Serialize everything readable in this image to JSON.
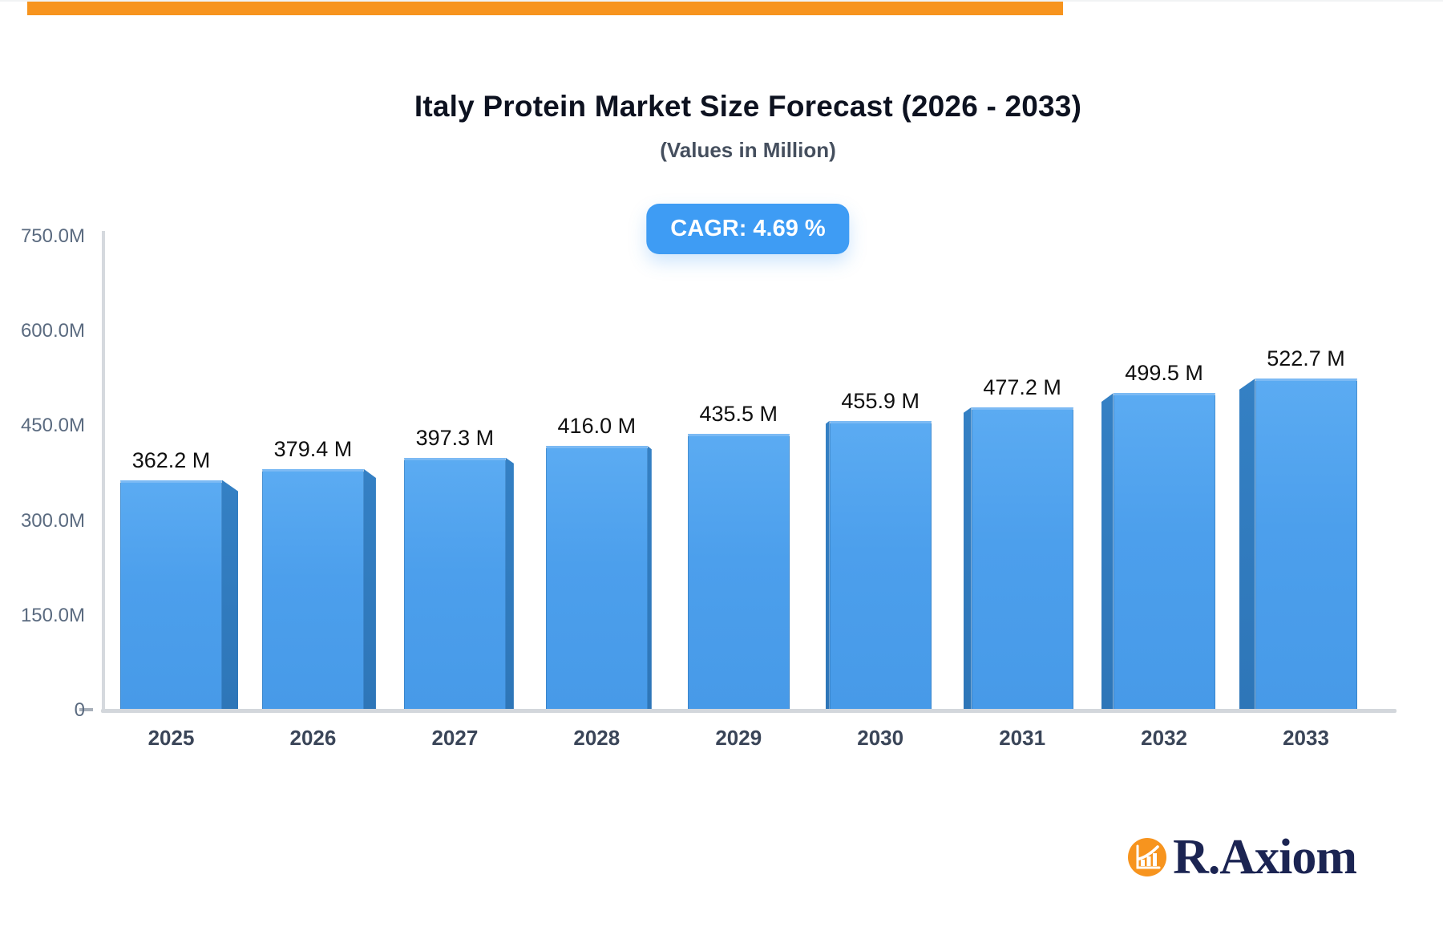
{
  "chart_data": {
    "type": "bar",
    "title": "Italy Protein Market Size Forecast (2026 - 2033)",
    "subtitle": "(Values in Million)",
    "cagr_label": "CAGR: 4.69 %",
    "categories": [
      "2025",
      "2026",
      "2027",
      "2028",
      "2029",
      "2030",
      "2031",
      "2032",
      "2033"
    ],
    "values": [
      362.2,
      379.4,
      397.3,
      416.0,
      435.5,
      455.9,
      477.2,
      499.5,
      522.7
    ],
    "value_labels": [
      "362.2 M",
      "379.4 M",
      "397.3 M",
      "416.0 M",
      "435.5 M",
      "455.9 M",
      "477.2 M",
      "499.5 M",
      "522.7 M"
    ],
    "unit": "Million",
    "xlabel": "",
    "ylabel": "",
    "ylim": [
      0,
      750
    ],
    "yticks": [
      {
        "label": "0",
        "value": 0
      },
      {
        "label": "150.0M",
        "value": 150
      },
      {
        "label": "300.0M",
        "value": 300
      },
      {
        "label": "450.0M",
        "value": 450
      },
      {
        "label": "600.0M",
        "value": 600
      },
      {
        "label": "750.0M",
        "value": 750
      }
    ],
    "grid": false,
    "legend": "none",
    "bar_label_position": "above",
    "bar_style": "3d-extruded",
    "colors": {
      "bar_face": "#51A4EE",
      "bar_side": "#2E76B8",
      "bar_top_highlight": "#7CBAF4",
      "badge_bg": "#3E9CF4",
      "badge_text": "#FFFFFF",
      "title_text": "#0D1220",
      "subtitle_text": "#454F5E",
      "ytick_text": "#5B6B80",
      "xtick_text": "#3A4558",
      "value_label_text": "#101010",
      "axis_line": "#D5D9DE"
    }
  },
  "branding": {
    "logo_text": "R.Axiom",
    "logo_text_color": "#1B2452",
    "logo_icon": "bar-chart-growth-icon",
    "logo_icon_bg": "#F7941E",
    "top_bar_color": "#F7941E"
  }
}
